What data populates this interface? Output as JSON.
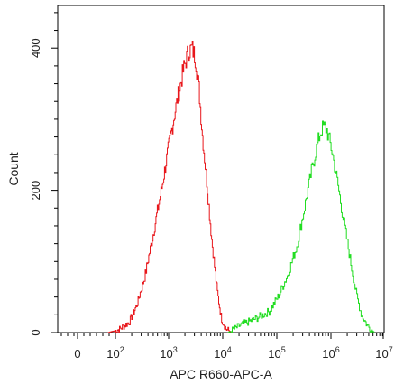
{
  "chart_data": {
    "type": "line",
    "title": "",
    "xlabel": "APC R660-APC-A",
    "ylabel": "Count",
    "x_scale": "logicle",
    "xlim": [
      "-10^1.2",
      "10^7"
    ],
    "ylim": [
      0,
      460
    ],
    "x_tick_labels": [
      {
        "base": "0",
        "exp": ""
      },
      {
        "base": "10",
        "exp": "2"
      },
      {
        "base": "10",
        "exp": "3"
      },
      {
        "base": "10",
        "exp": "4"
      },
      {
        "base": "10",
        "exp": "5"
      },
      {
        "base": "10",
        "exp": "6"
      },
      {
        "base": "10",
        "exp": "7"
      }
    ],
    "y_ticks": [
      0,
      200,
      400
    ],
    "y_tick_labels": [
      "0",
      "200",
      "400"
    ],
    "grid": false,
    "series": [
      {
        "color": "#e8161b",
        "x": [
          80,
          120,
          180,
          250,
          350,
          500,
          700,
          1000,
          1400,
          1800,
          2200,
          2600,
          3000,
          3500,
          4000,
          5000,
          6000,
          7500,
          9000,
          11000,
          14000
        ],
        "y": [
          0,
          5,
          15,
          40,
          80,
          140,
          200,
          270,
          330,
          370,
          395,
          400,
          385,
          340,
          280,
          200,
          130,
          60,
          20,
          5,
          0
        ]
      },
      {
        "color": "#22dd22",
        "x": [
          12000,
          20000,
          40000,
          70000,
          100000,
          150000,
          220000,
          300000,
          400000,
          500000,
          600000,
          700000,
          800000,
          1000000,
          1300000,
          1700000,
          2200000,
          2800000,
          3500000,
          4500000,
          6000000
        ],
        "y": [
          0,
          10,
          20,
          30,
          50,
          80,
          120,
          170,
          220,
          255,
          280,
          290,
          285,
          255,
          205,
          150,
          100,
          55,
          25,
          10,
          0
        ]
      }
    ]
  }
}
